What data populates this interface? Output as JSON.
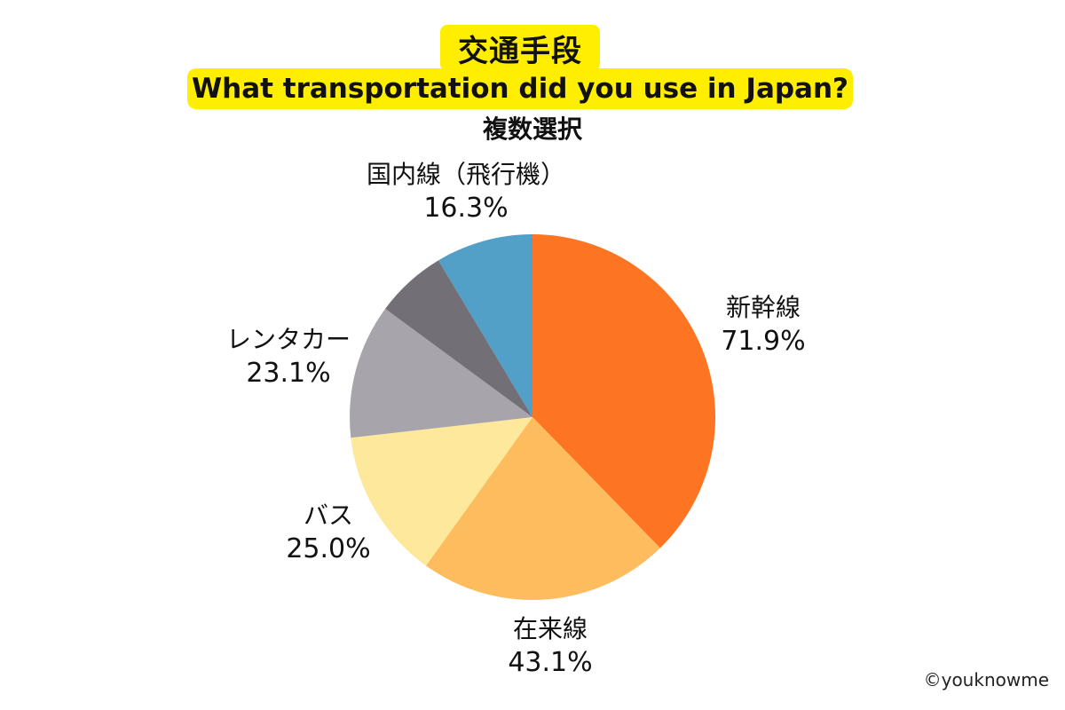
{
  "header": {
    "title_jp": "交通手段",
    "title_en": "What transportation did you use in Japan?",
    "subtitle": "複数選択",
    "highlight_color": "#ffee00"
  },
  "labels": {
    "shinkansen": {
      "name": "新幹線",
      "pct": "71.9%"
    },
    "zairaisen": {
      "name": "在来線",
      "pct": "43.1%"
    },
    "bus": {
      "name": "バス",
      "pct": "25.0%"
    },
    "rentacar": {
      "name": "レンタカー",
      "pct": "23.1%"
    },
    "domestic_flight": {
      "name": "国内線（飛行機）",
      "pct": "16.3%"
    }
  },
  "footer": {
    "copyright": "©youknowme"
  },
  "chart_data": {
    "type": "pie",
    "title": "交通手段 / What transportation did you use in Japan?",
    "subtitle": "複数選択",
    "start_angle": "12 o'clock, clockwise",
    "categories": [
      "新幹線",
      "在来線",
      "バス",
      "レンタカー",
      "(unlabeled)",
      "国内線（飛行機）"
    ],
    "values": [
      71.9,
      43.1,
      25.0,
      23.1,
      null,
      16.3
    ],
    "value_labels": [
      "71.9%",
      "43.1%",
      "25.0%",
      "23.1%",
      "",
      "16.3%"
    ],
    "approx_slice_share_pct": [
      37.7,
      22.2,
      13.3,
      11.9,
      6.3,
      8.6
    ],
    "colors": [
      "#fd7523",
      "#fdbd5e",
      "#fde89c",
      "#a7a5ab",
      "#727076",
      "#529fc8"
    ],
    "legend": "none (direct labels)"
  }
}
